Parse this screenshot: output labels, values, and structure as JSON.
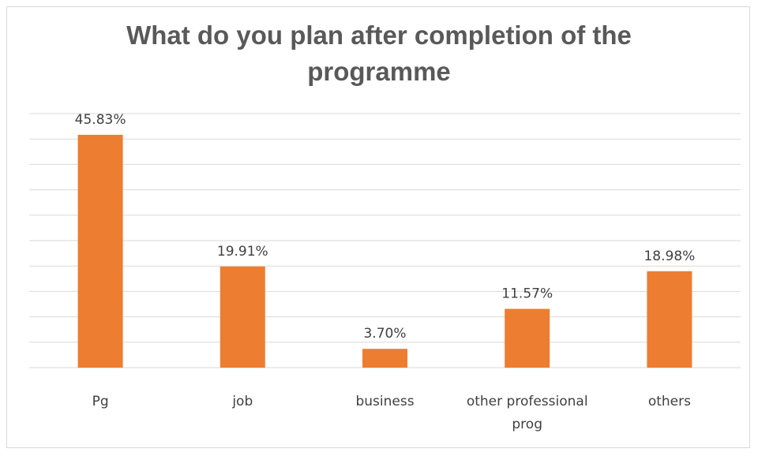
{
  "chart_data": {
    "type": "bar",
    "title": "What do you plan after completion of the programme",
    "categories": [
      "Pg",
      "job",
      "business",
      "other professional prog",
      "others"
    ],
    "category_lines": [
      [
        "Pg"
      ],
      [
        "job"
      ],
      [
        "business"
      ],
      [
        "other professional",
        "prog"
      ],
      [
        "others"
      ]
    ],
    "values": [
      45.83,
      19.91,
      3.7,
      11.57,
      18.98
    ],
    "data_labels": [
      "45.83%",
      "19.91%",
      "3.70%",
      "11.57%",
      "18.98%"
    ],
    "ylim": [
      0,
      50
    ],
    "grid": true,
    "legend": "none",
    "bar_color": "#ED7D31",
    "grid_color": "#D9D9D9"
  }
}
